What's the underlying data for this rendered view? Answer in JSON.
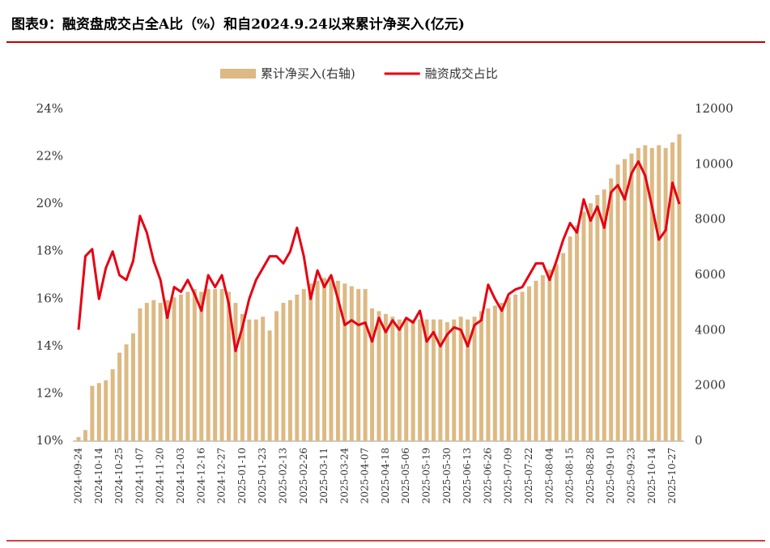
{
  "chart_data": {
    "type": "combo",
    "title": "图表9：融资盘成交占全A比（%）和自2024.9.24以来累计净买入(亿元)",
    "categories": [
      "2024-09-24",
      null,
      null,
      "2024-10-14",
      null,
      null,
      "2024-10-25",
      null,
      null,
      "2024-11-07",
      null,
      null,
      "2024-11-20",
      null,
      null,
      "2024-12-03",
      null,
      null,
      "2024-12-16",
      null,
      null,
      "2024-12-27",
      null,
      null,
      "2025-01-10",
      null,
      null,
      "2025-01-23",
      null,
      null,
      "2025-02-13",
      null,
      null,
      "2025-02-26",
      null,
      null,
      "2025-03-11",
      null,
      null,
      "2025-03-24",
      null,
      null,
      "2025-04-07",
      null,
      null,
      "2025-04-18",
      null,
      null,
      "2025-05-06",
      null,
      null,
      "2025-05-19",
      null,
      null,
      "2025-05-30",
      null,
      null,
      "2025-06-13",
      null,
      null,
      "2025-06-26",
      null,
      null,
      "2025-07-09",
      null,
      null,
      "2025-07-22",
      null,
      null,
      "2025-08-04",
      null,
      null,
      "2025-08-15",
      null,
      null,
      "2025-08-28",
      null,
      null,
      "2025-09-10",
      null,
      null,
      "2025-09-23",
      null,
      null,
      "2025-10-14",
      null,
      null,
      "2025-10-27",
      null
    ],
    "series": [
      {
        "name": "累计净买入(右轴)",
        "type": "bar",
        "axis": "y2",
        "color": "#ddb983",
        "values": [
          150,
          400,
          2000,
          2100,
          2200,
          2600,
          3200,
          3500,
          3900,
          4800,
          5000,
          5100,
          5000,
          5100,
          5200,
          5300,
          5400,
          5500,
          5400,
          5500,
          5500,
          5500,
          5400,
          5000,
          4600,
          4400,
          4400,
          4500,
          4000,
          4700,
          5000,
          5100,
          5300,
          5500,
          5700,
          5800,
          5900,
          5900,
          5800,
          5700,
          5600,
          5500,
          5500,
          4800,
          4700,
          4600,
          4500,
          4400,
          4400,
          4400,
          4400,
          4400,
          4400,
          4400,
          4300,
          4400,
          4500,
          4400,
          4500,
          4700,
          4800,
          4900,
          5000,
          5200,
          5300,
          5400,
          5600,
          5800,
          6000,
          6200,
          6400,
          6800,
          7400,
          7800,
          8300,
          8600,
          8900,
          9100,
          9500,
          10000,
          10200,
          10400,
          10600,
          10700,
          10600,
          10700,
          10600,
          10800,
          11100
        ]
      },
      {
        "name": "融资成交占比",
        "type": "line",
        "color": "#e60012",
        "values": [
          14.7,
          17.8,
          18.1,
          16.0,
          17.3,
          18.0,
          17.0,
          16.8,
          17.6,
          19.5,
          18.8,
          17.6,
          16.8,
          15.2,
          16.5,
          16.3,
          16.8,
          16.2,
          15.5,
          17.0,
          16.5,
          17.0,
          15.8,
          13.8,
          14.8,
          16.0,
          16.8,
          17.3,
          17.8,
          17.8,
          17.5,
          18.0,
          19.0,
          17.8,
          16.0,
          17.2,
          16.5,
          17.0,
          16.0,
          14.9,
          15.1,
          14.9,
          15.0,
          14.2,
          15.2,
          14.6,
          15.1,
          14.7,
          15.2,
          15.0,
          15.5,
          14.2,
          14.6,
          14.0,
          14.5,
          14.8,
          14.7,
          14.0,
          14.9,
          15.1,
          16.6,
          16.0,
          15.5,
          16.2,
          16.4,
          16.5,
          17.0,
          17.5,
          17.5,
          16.8,
          17.6,
          18.5,
          19.2,
          18.8,
          20.2,
          19.3,
          19.9,
          19.0,
          20.5,
          20.8,
          20.2,
          21.3,
          21.8,
          21.2,
          19.9,
          18.5,
          18.9,
          20.9,
          20.0
        ]
      }
    ],
    "ylim": [
      10,
      24
    ],
    "yticks": [
      {
        "value": 10,
        "label": "10%"
      },
      {
        "value": 12,
        "label": "12%"
      },
      {
        "value": 14,
        "label": "14%"
      },
      {
        "value": 16,
        "label": "16%"
      },
      {
        "value": 18,
        "label": "18%"
      },
      {
        "value": 20,
        "label": "20%"
      },
      {
        "value": 22,
        "label": "22%"
      },
      {
        "value": 24,
        "label": "24%"
      }
    ],
    "y2lim": [
      0,
      12000
    ],
    "y2ticks": [
      0,
      2000,
      4000,
      6000,
      8000,
      10000,
      12000
    ],
    "legend": "top"
  }
}
